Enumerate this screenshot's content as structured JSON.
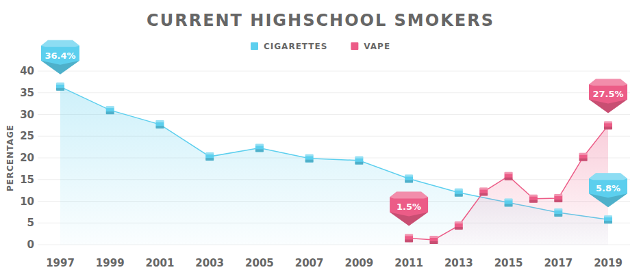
{
  "chart_data": {
    "type": "line",
    "title": "CURRENT HIGHSCHOOL SMOKERS",
    "ylabel": "PERCENTAGE",
    "xlim": [
      1997,
      2019
    ],
    "xticks": [
      1997,
      1999,
      2001,
      2003,
      2005,
      2007,
      2009,
      2011,
      2013,
      2015,
      2017,
      2019
    ],
    "ylim": [
      0,
      40
    ],
    "yticks": [
      0,
      5,
      10,
      15,
      20,
      25,
      30,
      35,
      40
    ],
    "grid": true,
    "legend": "top",
    "marker": "square",
    "series": [
      {
        "name": "CIGARETTES",
        "color": "#5ccfee",
        "x": [
          1997,
          1999,
          2001,
          2003,
          2005,
          2007,
          2009,
          2011,
          2013,
          2015,
          2017,
          2019
        ],
        "values": [
          36.4,
          31.0,
          27.7,
          20.3,
          22.3,
          19.9,
          19.4,
          15.2,
          12.0,
          9.7,
          7.4,
          5.8
        ],
        "value_labels": [
          "36.4%",
          null,
          null,
          null,
          null,
          null,
          null,
          null,
          null,
          null,
          null,
          "5.8%"
        ]
      },
      {
        "name": "VAPE",
        "color": "#ec5c87",
        "x": [
          2011,
          2012,
          2013,
          2014,
          2015,
          2016,
          2017,
          2018,
          2019
        ],
        "values": [
          1.5,
          1.1,
          4.4,
          12.2,
          15.8,
          10.6,
          10.7,
          20.2,
          27.5
        ],
        "value_labels": [
          "1.5%",
          null,
          null,
          null,
          null,
          null,
          null,
          null,
          "27.5%"
        ]
      }
    ]
  }
}
